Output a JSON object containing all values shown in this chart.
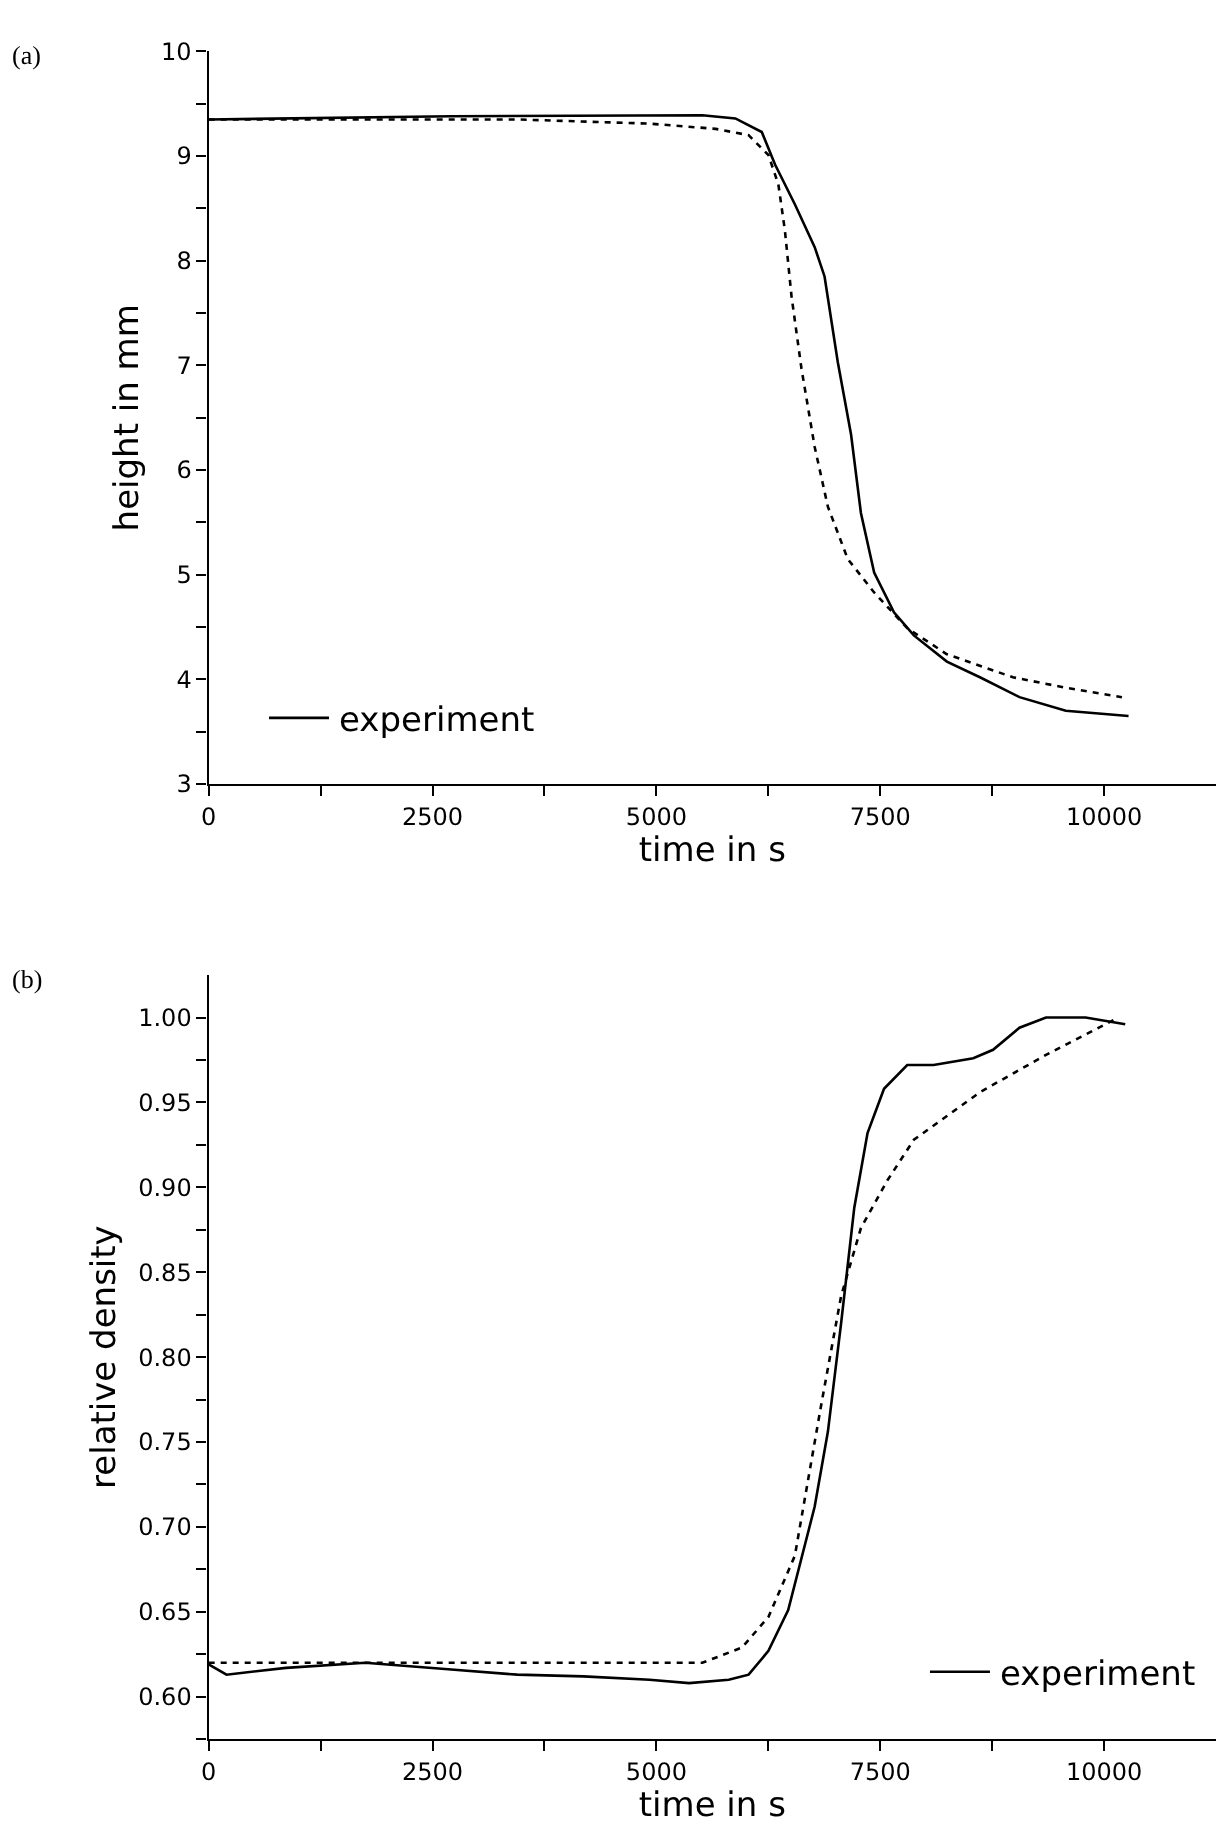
{
  "chart_data": [
    {
      "type": "line",
      "title": "(a)",
      "xlabel": "time in s",
      "ylabel": "height in mm",
      "xlim": [
        0,
        11250
      ],
      "ylim": [
        3,
        10
      ],
      "xticks": [
        0,
        {
          "value": 1250,
          "label": null
        },
        2500,
        {
          "value": 3750,
          "label": null
        },
        5000,
        {
          "value": 6250,
          "label": null
        },
        7500,
        {
          "value": 8750,
          "label": null
        },
        10000
      ],
      "yticks": [
        3,
        {
          "value": 3.5,
          "label": null
        },
        4,
        {
          "value": 4.5,
          "label": null
        },
        5,
        {
          "value": 5.5,
          "label": null
        },
        6,
        {
          "value": 6.5,
          "label": null
        },
        7,
        {
          "value": 7.5,
          "label": null
        },
        8,
        {
          "value": 8.5,
          "label": null
        },
        9,
        {
          "value": 9.5,
          "label": null
        },
        10
      ],
      "legend": "bottom left",
      "series": [
        {
          "name": "experiment",
          "color": "#000000",
          "line_style": "solid",
          "x": [
            0,
            2708,
            5513,
            5882,
            6177,
            6325,
            6546,
            6768,
            6878,
            7026,
            7174,
            7284,
            7432,
            7653,
            7875,
            8244,
            8613,
            9055,
            9572,
            10273
          ],
          "values": [
            9.35,
            9.38,
            9.39,
            9.36,
            9.23,
            8.92,
            8.54,
            8.13,
            7.85,
            7.03,
            6.34,
            5.59,
            5.02,
            4.64,
            4.42,
            4.17,
            4.02,
            3.83,
            3.7,
            3.65
          ]
        },
        {
          "color": "#000000",
          "line_style": "dotted",
          "x": [
            0,
            3446,
            4923,
            5661,
            6030,
            6251,
            6362,
            6435,
            6509,
            6620,
            6768,
            6915,
            7137,
            7432,
            7801,
            8244,
            8982,
            9572,
            10199
          ],
          "values": [
            9.35,
            9.35,
            9.31,
            9.26,
            9.2,
            9.01,
            8.73,
            8.29,
            7.66,
            6.97,
            6.22,
            5.65,
            5.15,
            4.83,
            4.49,
            4.24,
            4.02,
            3.92,
            3.83
          ]
        }
      ]
    },
    {
      "type": "line",
      "title": "(b)",
      "xlabel": "time in s",
      "ylabel": "relative density",
      "xlim": [
        0,
        11250
      ],
      "ylim": [
        0.575,
        1.025
      ],
      "xticks": [
        0,
        {
          "value": 1250,
          "label": null
        },
        2500,
        {
          "value": 3750,
          "label": null
        },
        5000,
        {
          "value": 6250,
          "label": null
        },
        7500,
        {
          "value": 8750,
          "label": null
        },
        10000
      ],
      "yticks": [
        {
          "value": 0.575,
          "label": null
        },
        {
          "value": 0.6,
          "label": "0.60"
        },
        {
          "value": 0.625,
          "label": null
        },
        0.65,
        {
          "value": 0.675,
          "label": null
        },
        {
          "value": 0.7,
          "label": "0.70"
        },
        {
          "value": 0.725,
          "label": null
        },
        0.75,
        {
          "value": 0.775,
          "label": null
        },
        {
          "value": 0.8,
          "label": "0.80"
        },
        {
          "value": 0.825,
          "label": null
        },
        0.85,
        {
          "value": 0.875,
          "label": null
        },
        {
          "value": 0.9,
          "label": "0.90"
        },
        {
          "value": 0.925,
          "label": null
        },
        0.95,
        {
          "value": 0.975,
          "label": null
        },
        {
          "value": 1.0,
          "label": "1.00"
        }
      ],
      "legend": "bottom right",
      "series": [
        {
          "name": "experiment",
          "color": "#000000",
          "line_style": "solid",
          "x": [
            0,
            199,
            864,
            1749,
            2708,
            3446,
            4185,
            4923,
            5365,
            5808,
            6030,
            6251,
            6472,
            6768,
            6915,
            7063,
            7210,
            7358,
            7542,
            7801,
            8096,
            8539,
            8760,
            9055,
            9351,
            9793,
            10236
          ],
          "values": [
            0.619,
            0.613,
            0.617,
            0.62,
            0.616,
            0.613,
            0.612,
            0.61,
            0.608,
            0.61,
            0.613,
            0.627,
            0.651,
            0.712,
            0.756,
            0.82,
            0.888,
            0.932,
            0.958,
            0.972,
            0.972,
            0.976,
            0.981,
            0.994,
            1.0,
            1.0,
            0.996
          ]
        },
        {
          "color": "#000000",
          "line_style": "dotted",
          "x": [
            0,
            5513,
            5956,
            6251,
            6546,
            6841,
            7063,
            7284,
            7579,
            7875,
            8613,
            9351,
            10162
          ],
          "values": [
            0.62,
            0.62,
            0.629,
            0.647,
            0.683,
            0.772,
            0.836,
            0.876,
            0.904,
            0.928,
            0.956,
            0.978,
            1.0
          ]
        }
      ]
    }
  ]
}
